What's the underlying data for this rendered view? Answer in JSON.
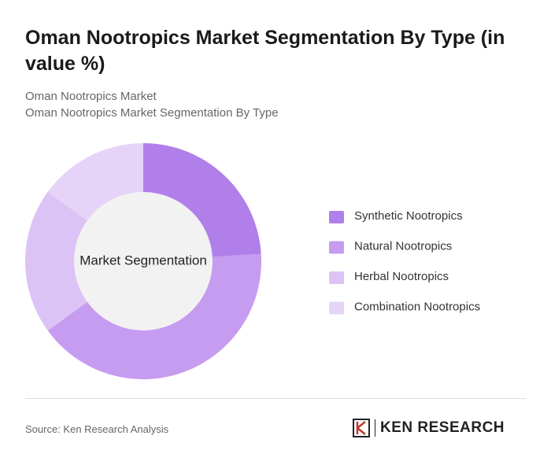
{
  "chart_data": {
    "type": "donut",
    "title": "Oman Nootropics Market Segmentation By Type (in value %)",
    "subtitle": [
      "Oman Nootropics Market",
      "Oman Nootropics Market Segmentation By Type"
    ],
    "center_label": "Market Segmentation",
    "categories": [
      "Synthetic Nootropics",
      "Natural Nootropics",
      "Herbal Nootropics",
      "Combination Nootropics"
    ],
    "values": [
      24,
      41,
      20,
      15
    ],
    "colors": [
      "#b07fe9",
      "#c69cf0",
      "#dcc3f5",
      "#e6d4f8"
    ],
    "source": "Source: Ken Research Analysis",
    "logo": "KEN RESEARCH"
  }
}
